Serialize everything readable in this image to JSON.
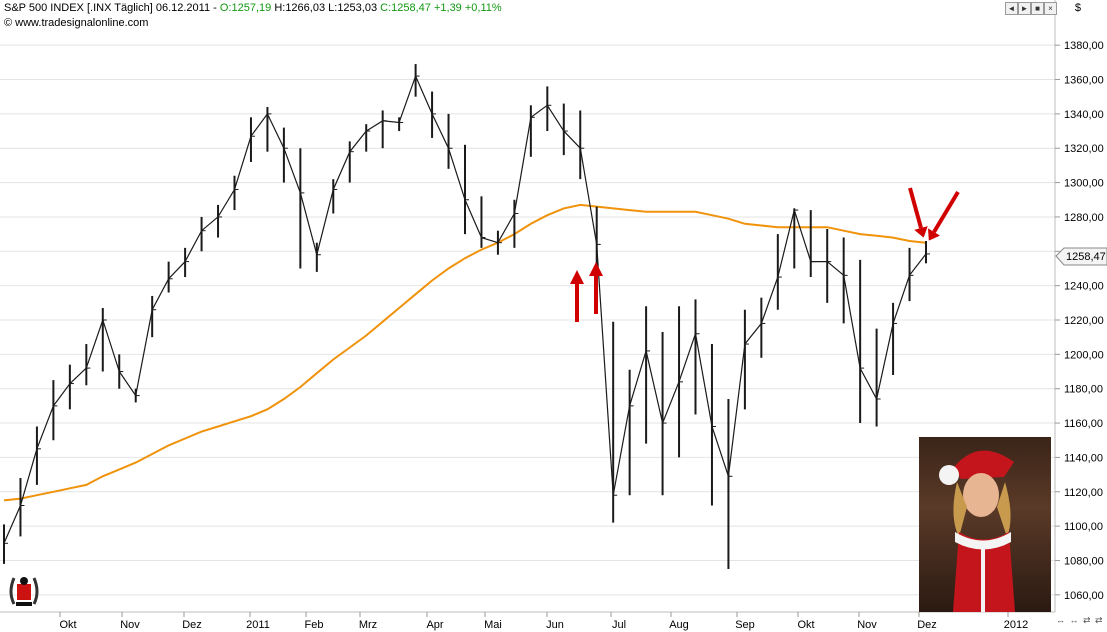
{
  "header": {
    "symbol": "S&P 500 INDEX [.INX  Täglich]",
    "date": "06.12.2011",
    "open": "O:1257,19",
    "high": "H:1266,03",
    "low": "L:1253,03",
    "close": "C:1258,47",
    "change": "+1,39",
    "change_pct": "+0,11%"
  },
  "source": "© www.tradesignalonline.com",
  "controls": {
    "prev": "◄",
    "next": "►",
    "expand": "■",
    "close": "×"
  },
  "currency": "$",
  "last_price": "1258,47",
  "colors": {
    "price": "#1a1a1a",
    "ma": "#f0920a",
    "arrow": "#d10000",
    "grid": "#e4e4e4"
  },
  "icons": [
    "laurel-logo-icon",
    "red-arrow-icon",
    "scroll-arrows-icon"
  ],
  "chart_data": {
    "type": "line",
    "title": "",
    "xlabel": "",
    "ylabel": "",
    "ylim": [
      1050,
      1390
    ],
    "y_ticks": [
      "1060,00",
      "1080,00",
      "1100,00",
      "1120,00",
      "1140,00",
      "1160,00",
      "1180,00",
      "1200,00",
      "1220,00",
      "1240,00",
      "1260,00",
      "1280,00",
      "1300,00",
      "1320,00",
      "1340,00",
      "1360,00",
      "1380,00"
    ],
    "x_ticks": [
      "Okt",
      "Nov",
      "Dez",
      "2011",
      "Feb",
      "Mrz",
      "Apr",
      "Mai",
      "Jun",
      "Jul",
      "Aug",
      "Sep",
      "Okt",
      "Nov",
      "Dez",
      "2012"
    ],
    "price_high": [
      1101,
      1128,
      1158,
      1185,
      1194,
      1206,
      1227,
      1200,
      1180,
      1234,
      1254,
      1262,
      1280,
      1287,
      1304,
      1338,
      1344,
      1332,
      1320,
      1265,
      1302,
      1324,
      1334,
      1342,
      1338,
      1369,
      1353,
      1340,
      1322,
      1292,
      1272,
      1290,
      1345,
      1356,
      1346,
      1342,
      1286,
      1219,
      1191,
      1228,
      1213,
      1228,
      1232,
      1206,
      1174,
      1226,
      1233,
      1270,
      1285,
      1284,
      1273,
      1268,
      1255,
      1215,
      1230,
      1262,
      1266
    ],
    "price_low": [
      1078,
      1094,
      1124,
      1150,
      1168,
      1182,
      1190,
      1180,
      1172,
      1210,
      1236,
      1245,
      1260,
      1268,
      1284,
      1312,
      1318,
      1300,
      1250,
      1248,
      1282,
      1300,
      1318,
      1320,
      1330,
      1350,
      1326,
      1308,
      1270,
      1262,
      1258,
      1262,
      1315,
      1330,
      1316,
      1302,
      1240,
      1102,
      1118,
      1148,
      1118,
      1140,
      1165,
      1112,
      1075,
      1168,
      1198,
      1226,
      1250,
      1245,
      1230,
      1218,
      1160,
      1158,
      1188,
      1231,
      1253
    ],
    "price_close": [
      1090,
      1112,
      1145,
      1170,
      1183,
      1192,
      1220,
      1190,
      1176,
      1226,
      1244,
      1254,
      1272,
      1280,
      1296,
      1327,
      1340,
      1320,
      1294,
      1258,
      1296,
      1318,
      1330,
      1336,
      1335,
      1362,
      1340,
      1320,
      1290,
      1268,
      1265,
      1282,
      1338,
      1345,
      1330,
      1320,
      1264,
      1118,
      1170,
      1202,
      1160,
      1184,
      1212,
      1158,
      1129,
      1206,
      1218,
      1245,
      1284,
      1254,
      1254,
      1246,
      1192,
      1174,
      1218,
      1246,
      1258.47
    ],
    "series": [
      {
        "values": [
          1115,
          1116,
          1118,
          1120,
          1122,
          1124,
          1129,
          1133,
          1137,
          1142,
          1147,
          1151,
          1155,
          1158,
          1161,
          1164,
          1168,
          1174,
          1181,
          1189,
          1197,
          1204,
          1211,
          1219,
          1227,
          1235,
          1243,
          1250,
          1256,
          1261,
          1265,
          1270,
          1276,
          1281,
          1285,
          1287,
          1286,
          1285,
          1284,
          1283,
          1283,
          1283,
          1283,
          1281,
          1279,
          1276,
          1275,
          1274,
          1274,
          1274,
          1274,
          1272,
          1270,
          1269,
          1268,
          1266,
          1265
        ]
      }
    ],
    "annotations": [
      {
        "type": "up-arrow",
        "at": 1262
      },
      {
        "type": "up-arrow",
        "at": 1264
      },
      {
        "type": "down-arrow",
        "at": 1266
      },
      {
        "type": "down-arrow",
        "at": 1266
      }
    ]
  }
}
